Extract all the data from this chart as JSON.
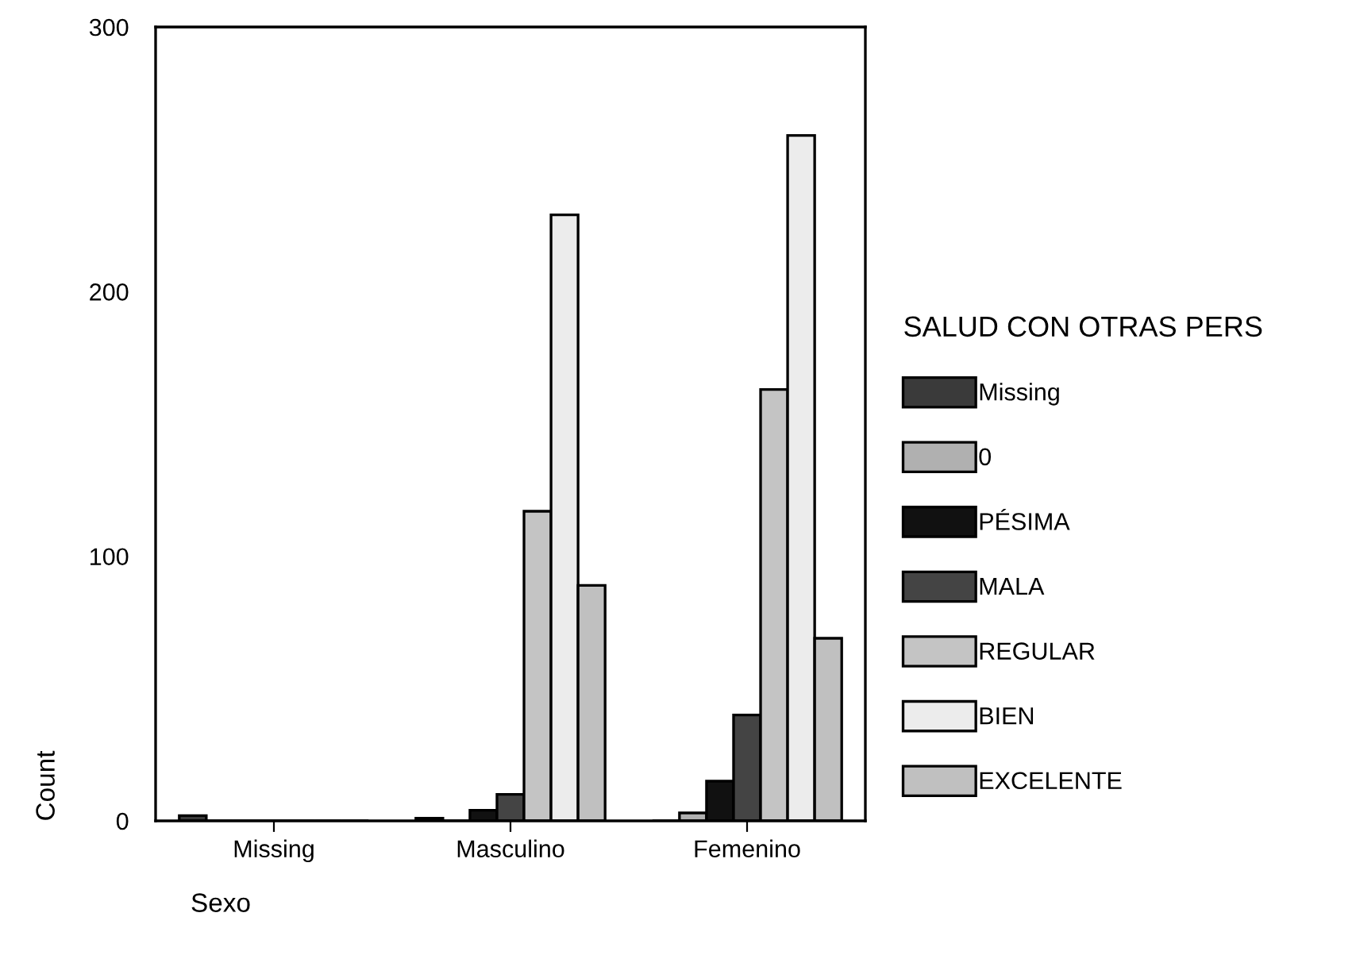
{
  "chart_data": {
    "type": "bar",
    "xlabel": "Sexo",
    "ylabel": "Count",
    "legend_title": "SALUD CON OTRAS PERS",
    "categories": [
      "Missing",
      "Masculino",
      "Femenino"
    ],
    "series": [
      {
        "name": "Missing",
        "color": "#3a3a3a",
        "values": [
          2,
          1,
          0
        ]
      },
      {
        "name": "0",
        "color": "#b0b0b0",
        "values": [
          0,
          0,
          3
        ]
      },
      {
        "name": "PÉSIMA",
        "color": "#111111",
        "values": [
          0,
          4,
          15
        ]
      },
      {
        "name": "MALA",
        "color": "#444444",
        "values": [
          0,
          10,
          40
        ]
      },
      {
        "name": "REGULAR",
        "color": "#c4c4c4",
        "values": [
          0,
          117,
          163
        ]
      },
      {
        "name": "BIEN",
        "color": "#ececec",
        "values": [
          0,
          229,
          259
        ]
      },
      {
        "name": "EXCELENTE",
        "color": "#c0c0c0",
        "values": [
          0,
          89,
          69
        ]
      }
    ],
    "ylim": [
      0,
      300
    ],
    "yticks": [
      0,
      100,
      200,
      300
    ],
    "grid": false,
    "legend": "right"
  }
}
